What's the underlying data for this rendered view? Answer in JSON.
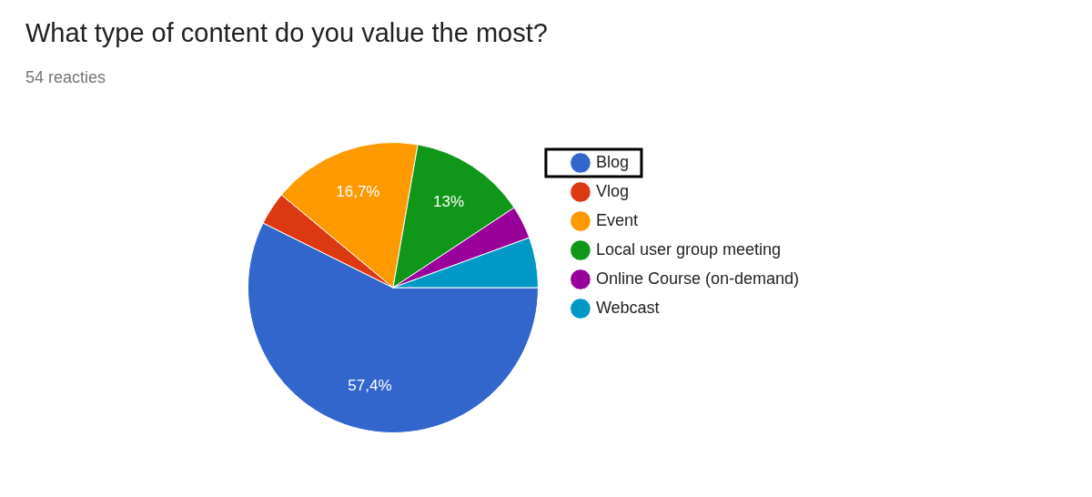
{
  "chart_data": {
    "type": "pie",
    "title": "What type of content do you value the most?",
    "subtitle": "54 reacties",
    "categories": [
      "Blog",
      "Vlog",
      "Event",
      "Local user group meeting",
      "Online Course (on-demand)",
      "Webcast"
    ],
    "values": [
      57.4,
      3.7,
      16.7,
      13,
      3.7,
      5.6
    ],
    "colors": [
      "#3366cc",
      "#dc3912",
      "#ff9900",
      "#109618",
      "#990099",
      "#0099c6"
    ],
    "value_labels": [
      "57,4%",
      null,
      "16,7%",
      "13%",
      null,
      null
    ],
    "legend": "right"
  }
}
